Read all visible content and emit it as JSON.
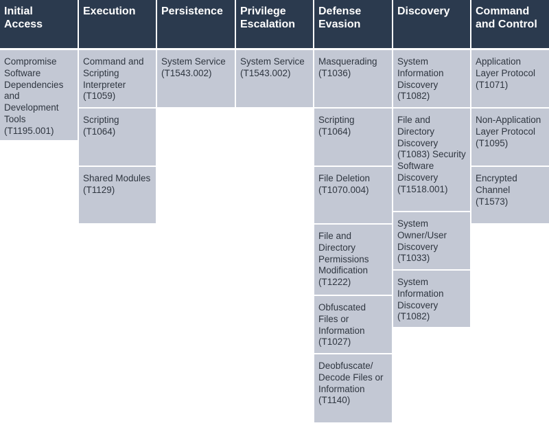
{
  "headers": [
    "Initial Access",
    "Execution",
    "Persistence",
    "Privilege Escalation",
    "Defense Evasion",
    "Discovery",
    "Command and Control"
  ],
  "columns": [
    [
      "Compromise Software Dependencies and Development Tools (T1195.001)"
    ],
    [
      "Command and Scripting Interpreter (T1059)",
      "Scripting (T1064)",
      "Shared Modules (T1129)"
    ],
    [
      "System Service (T1543.002)"
    ],
    [
      "System Service (T1543.002)"
    ],
    [
      "Masquerading (T1036)",
      "Scripting (T1064)",
      "File Deletion (T1070.004)",
      "File and Directory Permissions Modification (T1222)",
      "Obfuscated Files or Information (T1027)",
      "Deobfuscate/ Decode Files or Information (T1140)"
    ],
    [
      "System Information Discovery (T1082)",
      "File and Directory Discovery (T1083) Security Software Discovery (T1518.001)",
      "System Owner/User Discovery (T1033)",
      "System Information Discovery (T1082)"
    ],
    [
      "Application Layer Protocol (T1071)",
      "Non-Application Layer Protocol (T1095)",
      "Encrypted Channel (T1573)"
    ]
  ]
}
